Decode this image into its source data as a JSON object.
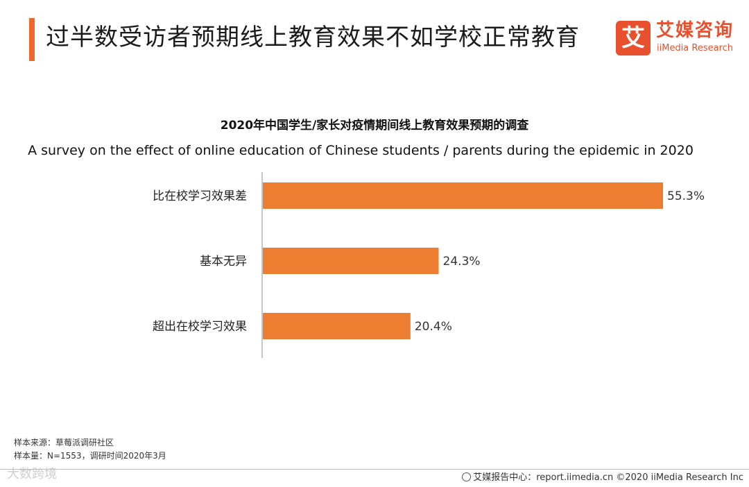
{
  "header": {
    "title": "过半数受访者预期线上教育效果不如学校正常教育"
  },
  "logo": {
    "mark": "艾",
    "name_cn": "艾媒咨询",
    "name_en": "iiMedia Research",
    "color": "#e8502e"
  },
  "chart_data": {
    "type": "bar",
    "orientation": "horizontal",
    "title": "2020年中国学生/家长对疫情期间线上教育效果预期的调查",
    "subtitle": "A survey on the effect of online education of Chinese students / parents during the epidemic in 2020",
    "categories": [
      "比在校学习效果差",
      "基本无异",
      "超出在校学习效果"
    ],
    "values": [
      55.3,
      24.3,
      20.4
    ],
    "value_labels": [
      "55.3%",
      "24.3%",
      "20.4%"
    ],
    "unit": "%",
    "xlabel": "",
    "ylabel": "",
    "xlim": [
      0,
      55.3
    ],
    "grid": false,
    "legend": "none",
    "bar_color": "#ed7d31"
  },
  "notes": {
    "source": "样本来源：草莓派调研社区",
    "sample": "样本量：N=1553，调研时间2020年3月"
  },
  "footer": {
    "text": "艾媒报告中心：report.iimedia.cn  ©2020  iiMedia Research  Inc",
    "watermark": "大数跨境",
    "icon": "globe-icon"
  }
}
